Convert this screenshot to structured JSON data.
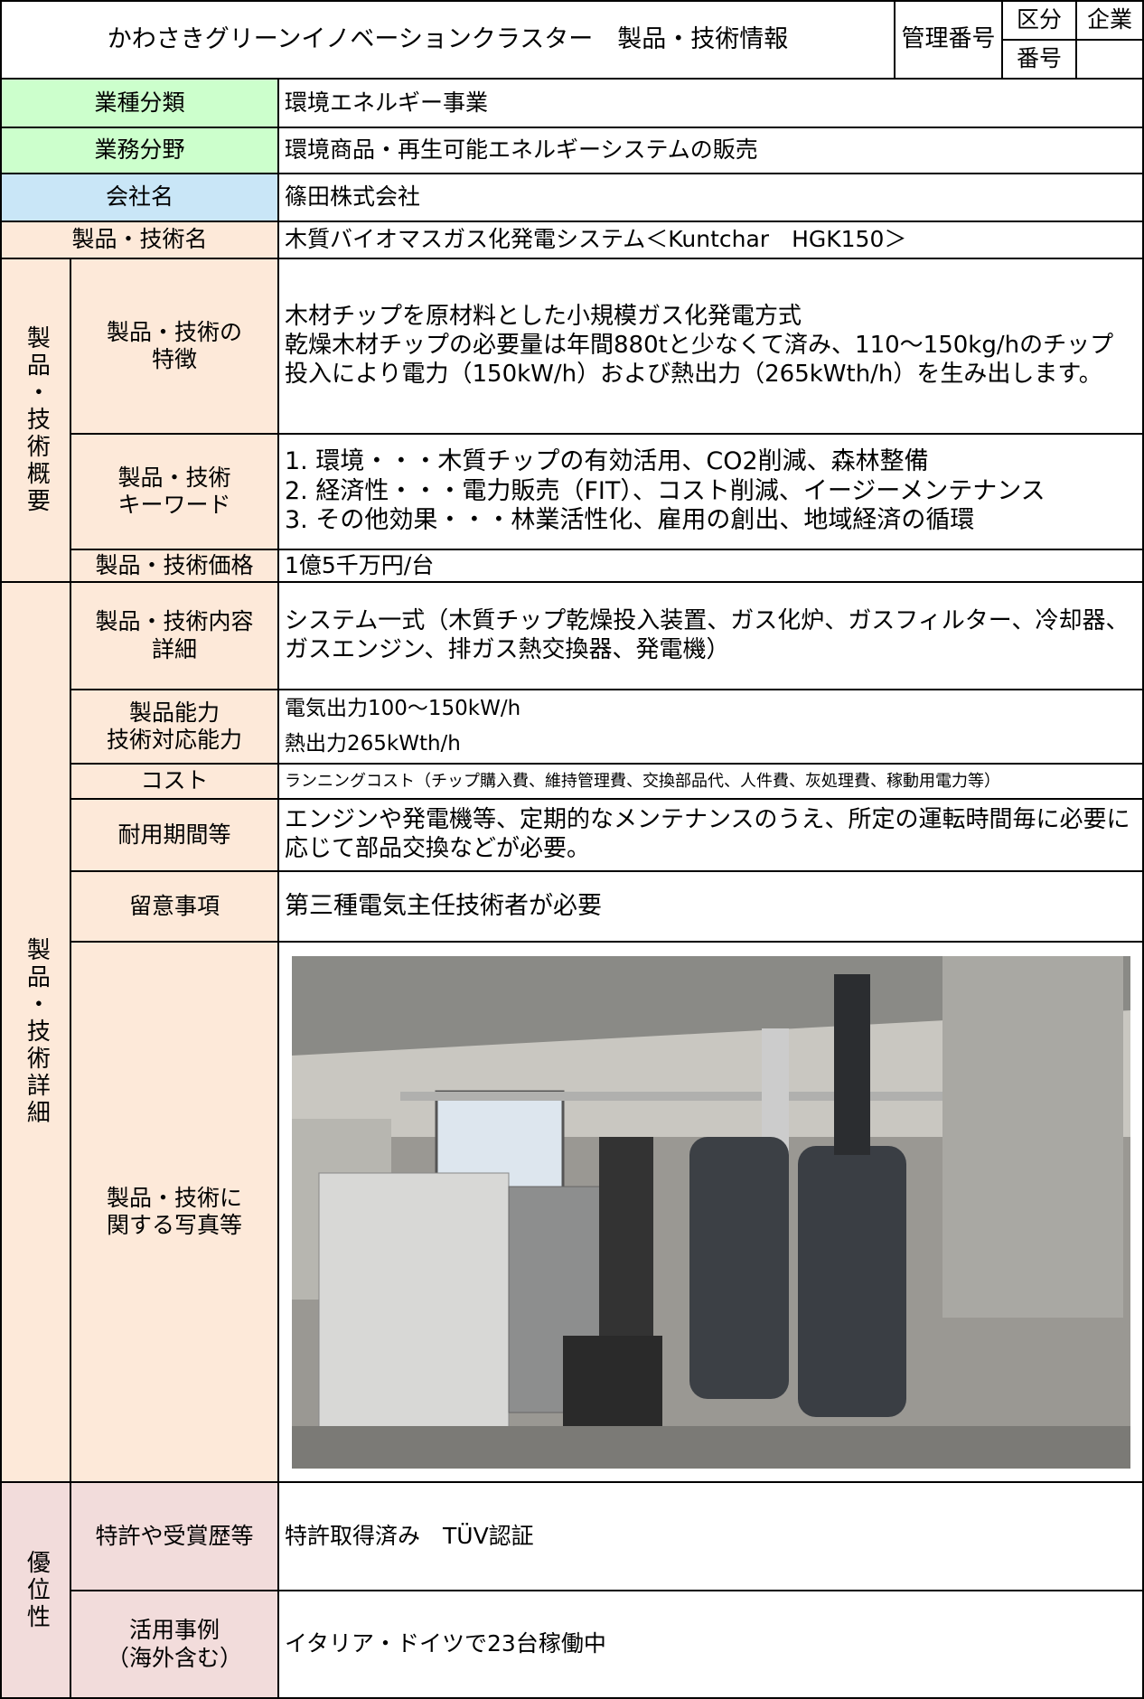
{
  "header": {
    "title": "かわさきグリーンイノベーションクラスター　製品・技術情報",
    "management_number_label": "管理番号",
    "category_label": "区分",
    "category_value": "企業",
    "number_label": "番号"
  },
  "rows": [
    {
      "label": "業種分類",
      "value": "環境エネルギー事業"
    },
    {
      "label": "業務分野",
      "value": "環境商品・再生可能エネルギーシステムの販売"
    },
    {
      "label": "会社名",
      "value": "篠田株式会社"
    },
    {
      "label": "製品・技術名",
      "value": "木質バイオマスガス化発電システム＜Kuntchar　HGK150＞"
    }
  ],
  "overview": {
    "group_label": "製品・技術概要",
    "features": {
      "label": "製品・技術の\n特徴",
      "value": "木材チップを原材料とした小規模ガス化発電方式\n乾燥木材チップの必要量は年間880tと少なくて済み、110〜150kg/hのチップ投入により電力（150kW/h）および熱出力（265kWth/h）を生み出します。"
    },
    "keywords": {
      "label": "製品・技術\nキーワード",
      "lines": [
        "1. 環境・・・木質チップの有効活用、CO2削減、森林整備",
        "2. 経済性・・・電力販売（FIT）、コスト削減、イージーメンテナンス",
        "3. その他効果・・・林業活性化、雇用の創出、地域経済の循環"
      ]
    },
    "price": {
      "label": "製品・技術価格",
      "value": "1億5千万円/台"
    }
  },
  "details": {
    "group_label": "製品・技術詳細",
    "content": {
      "label": "製品・技術内容\n詳細",
      "value": "システム一式（木質チップ乾燥投入装置、ガス化炉、ガスフィルター、冷却器、ガスエンジン、排ガス熱交換器、発電機）"
    },
    "capability": {
      "label": "製品能力\n技術対応能力",
      "lines": [
        "電気出力100〜150kW/h",
        "熱出力265kWth/h"
      ]
    },
    "cost": {
      "label": "コスト",
      "value": "ランニングコスト（チップ購入費、維持管理費、交換部品代、人件費、灰処理費、稼動用電力等）"
    },
    "lifespan": {
      "label": "耐用期間等",
      "value": "エンジンや発電機等、定期的なメンテナンスのうえ、所定の運転時間毎に必要に応じて部品交換などが必要。"
    },
    "notes": {
      "label": "留意事項",
      "value": "第三種電気主任技術者が必要"
    },
    "photo": {
      "label": "製品・技術に\n関する写真等"
    }
  },
  "advantages": {
    "group_label": "優位性",
    "patents": {
      "label": "特許や受賞歴等",
      "value": "特許取得済み　TÜV認証"
    },
    "cases": {
      "label": "活用事例\n（海外含む）",
      "value": "イタリア・ドイツで23台稼働中"
    }
  }
}
